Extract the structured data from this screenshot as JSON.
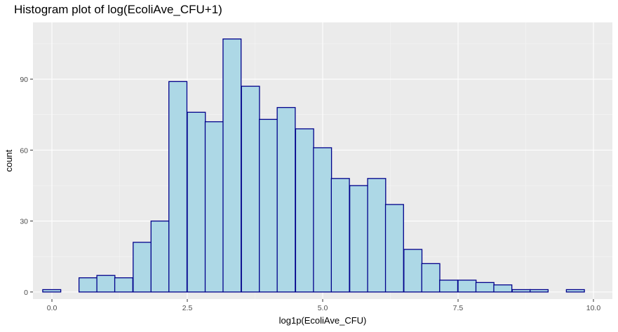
{
  "chart_data": {
    "type": "bar",
    "title": "Histogram plot of log(EcoliAve_CFU+1)",
    "xlabel": "log1p(EcoliAve_CFU)",
    "ylabel": "count",
    "xlim": [
      -0.35,
      10.35
    ],
    "ylim": [
      -3,
      114
    ],
    "x_ticks": [
      0,
      2.5,
      5,
      7.5,
      10
    ],
    "x_tick_labels": [
      "0.0",
      "2.5",
      "5.0",
      "7.5",
      "10.0"
    ],
    "y_ticks": [
      0,
      30,
      60,
      90
    ],
    "y_tick_labels": [
      "0",
      "30",
      "60",
      "90"
    ],
    "bin_width": 0.3333,
    "bin_starts": [
      -0.17,
      0.16,
      0.5,
      0.83,
      1.16,
      1.5,
      1.83,
      2.16,
      2.5,
      2.83,
      3.16,
      3.5,
      3.83,
      4.16,
      4.5,
      4.83,
      5.16,
      5.5,
      5.83,
      6.16,
      6.5,
      6.83,
      7.16,
      7.5,
      7.83,
      8.16,
      8.5,
      8.83,
      9.16,
      9.5
    ],
    "values": [
      1,
      0,
      6,
      7,
      6,
      21,
      30,
      89,
      76,
      72,
      107,
      87,
      73,
      78,
      69,
      61,
      48,
      45,
      48,
      37,
      18,
      12,
      5,
      5,
      4,
      3,
      1,
      1,
      0,
      1
    ],
    "grid": true,
    "colors": {
      "panel_background": "#ebebeb",
      "grid_major": "#ffffff",
      "bar_fill": "#add8e6",
      "bar_outline": "#00008b"
    }
  }
}
